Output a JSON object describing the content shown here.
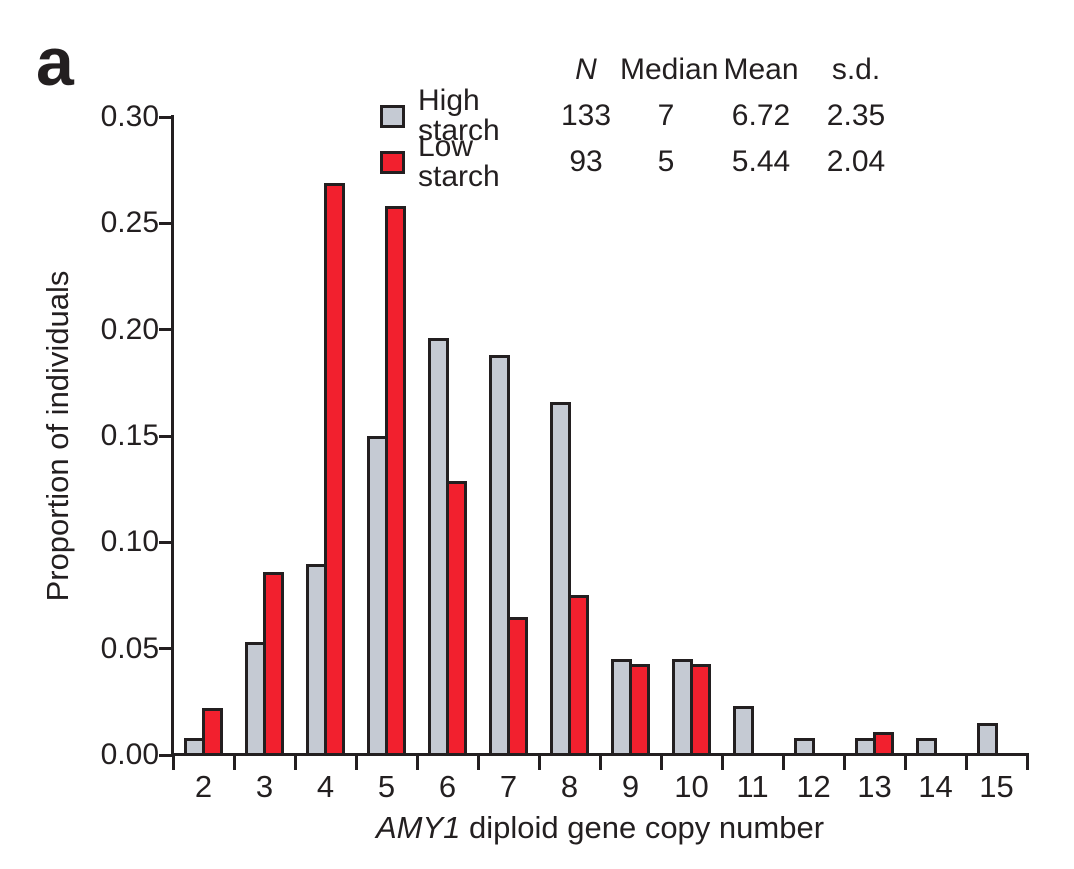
{
  "panel_label": "a",
  "colors": {
    "high_starch_fill": "#c5cad3",
    "low_starch_fill": "#f2202e",
    "outline": "#231f20",
    "text": "#231f20",
    "background": "#ffffff"
  },
  "legend": {
    "header": {
      "n": "N",
      "median": "Median",
      "mean": "Mean",
      "sd": "s.d."
    },
    "rows": [
      {
        "label": "High starch",
        "n": "133",
        "median": "7",
        "mean": "6.72",
        "sd": "2.35"
      },
      {
        "label": "Low starch",
        "n": "93",
        "median": "5",
        "mean": "5.44",
        "sd": "2.04"
      }
    ]
  },
  "chart_data": {
    "type": "bar",
    "title": "",
    "xlabel_gene": "AMY1",
    "xlabel_rest": " diploid gene copy number",
    "ylabel": "Proportion of individuals",
    "categories": [
      "2",
      "3",
      "4",
      "5",
      "6",
      "7",
      "8",
      "9",
      "10",
      "11",
      "12",
      "13",
      "14",
      "15"
    ],
    "series": [
      {
        "name": "High starch",
        "color_key": "high_starch_fill",
        "n": 133,
        "median": 7,
        "mean": 6.72,
        "sd": 2.35,
        "values": [
          0.008,
          0.053,
          0.09,
          0.15,
          0.196,
          0.188,
          0.166,
          0.045,
          0.045,
          0.023,
          0.008,
          0.008,
          0.008,
          0.015
        ]
      },
      {
        "name": "Low starch",
        "color_key": "low_starch_fill",
        "n": 93,
        "median": 5,
        "mean": 5.44,
        "sd": 2.04,
        "values": [
          0.022,
          0.086,
          0.269,
          0.258,
          0.129,
          0.065,
          0.075,
          0.043,
          0.043,
          0,
          0,
          0.011,
          0,
          0
        ]
      }
    ],
    "ylim": [
      0,
      0.3
    ],
    "y_ticks": [
      "0.00",
      "0.05",
      "0.10",
      "0.15",
      "0.20",
      "0.25",
      "0.30"
    ],
    "grid": false,
    "legend_position": "top-right"
  }
}
